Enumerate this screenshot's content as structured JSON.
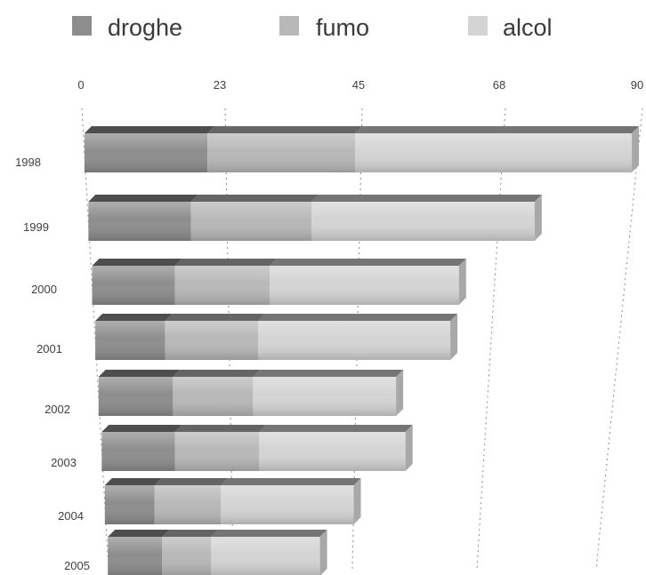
{
  "chart_data": {
    "type": "bar",
    "orientation": "horizontal",
    "stacked": true,
    "three_d": true,
    "categories": [
      "1998",
      "1999",
      "2000",
      "2001",
      "2002",
      "2003",
      "2004",
      "2005"
    ],
    "series": [
      {
        "name": "droghe",
        "values": [
          20,
          17,
          14,
          12,
          13,
          13,
          9,
          10
        ],
        "color": "#8d8d8d"
      },
      {
        "name": "fumo",
        "values": [
          24,
          20,
          16,
          16,
          14,
          15,
          12,
          9
        ],
        "color": "#b8b8b8"
      },
      {
        "name": "alcol",
        "values": [
          45,
          37,
          32,
          33,
          25,
          26,
          24,
          20
        ],
        "color": "#d4d4d4"
      }
    ],
    "xticks": [
      0,
      23,
      45,
      68,
      90
    ],
    "xlim": [
      0,
      90
    ],
    "grid": true,
    "legend_position": "top"
  }
}
